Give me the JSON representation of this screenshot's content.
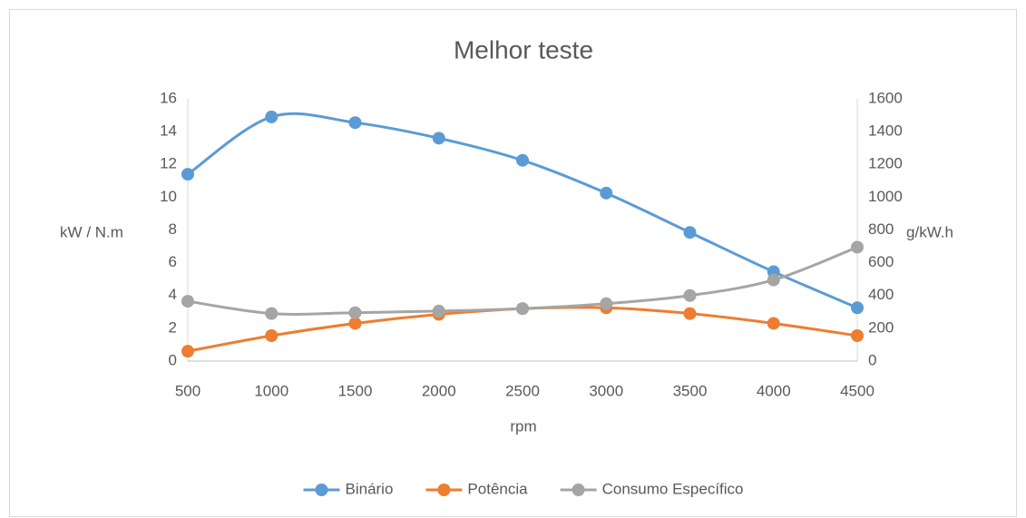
{
  "chart_data": {
    "type": "line",
    "title": "Melhor teste",
    "xlabel": "rpm",
    "ylabel": "kW / N.m",
    "y2label": "g/kW.h",
    "x": [
      500,
      1000,
      1500,
      2000,
      2500,
      3000,
      3500,
      4000,
      4500
    ],
    "xlim": [
      500,
      4500
    ],
    "xticks": [
      500,
      1000,
      1500,
      2000,
      2500,
      3000,
      3500,
      4000,
      4500
    ],
    "ylim": [
      0,
      16
    ],
    "yticks": [
      0,
      2,
      4,
      6,
      8,
      10,
      12,
      14,
      16
    ],
    "y2lim": [
      0,
      1600
    ],
    "y2ticks": [
      0,
      200,
      400,
      600,
      800,
      1000,
      1200,
      1400,
      1600
    ],
    "smooth": true,
    "legend": "bottom",
    "series": [
      {
        "name": "Binário",
        "color": "#5b9bd5",
        "values": [
          11.4,
          14.9,
          14.55,
          13.6,
          12.25,
          10.25,
          7.85,
          5.45,
          3.25
        ]
      },
      {
        "name": "Potência",
        "color": "#ed7d31",
        "values": [
          0.6,
          1.55,
          2.3,
          2.85,
          3.2,
          3.25,
          2.9,
          2.3,
          1.55
        ]
      },
      {
        "name": "Consumo Específico",
        "color": "#a5a5a5",
        "axis": "y2",
        "values": [
          365,
          290,
          295,
          305,
          320,
          350,
          400,
          495,
          695
        ]
      }
    ]
  }
}
